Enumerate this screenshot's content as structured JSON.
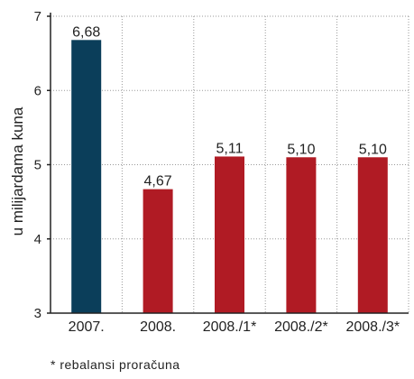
{
  "chart_data": {
    "type": "bar",
    "categories": [
      "2007.",
      "2008.",
      "2008./1*",
      "2008./2*",
      "2008./3*"
    ],
    "values": [
      6.68,
      4.67,
      5.11,
      5.1,
      5.1
    ],
    "value_labels": [
      "6,68",
      "4,67",
      "5,11",
      "5,10",
      "5,10"
    ],
    "bar_colors": [
      "#0b3e5a",
      "#b01b24",
      "#b01b24",
      "#b01b24",
      "#b01b24"
    ],
    "ylabel": "u milijardama kuna",
    "ylim": [
      3,
      7
    ],
    "yticks": [
      "3",
      "4",
      "5",
      "6",
      "7"
    ],
    "grid": true,
    "footnote": "* rebalansi proračuna"
  }
}
